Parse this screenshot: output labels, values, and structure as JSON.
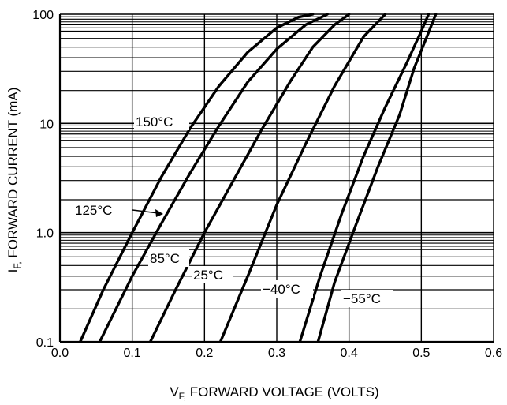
{
  "chart_data": {
    "type": "line",
    "title": "",
    "xlabel": "V_F, FORWARD VOLTAGE (VOLTS)",
    "xlabel_main": "V",
    "xlabel_sub": "F,",
    "xlabel_rest": " FORWARD VOLTAGE (VOLTS)",
    "ylabel": "I_F, FORWARD CURRENT (mA)",
    "ylabel_main": "I",
    "ylabel_sub": "F,",
    "ylabel_rest": " FORWARD CURRENT (mA)",
    "xlim": [
      0.0,
      0.6
    ],
    "ylim": [
      0.1,
      100
    ],
    "yscale": "log",
    "grid": true,
    "x_ticks": [
      "0.0",
      "0.1",
      "0.2",
      "0.3",
      "0.4",
      "0.5",
      "0.6"
    ],
    "y_ticks": [
      {
        "value": 0.1,
        "label": "0.1"
      },
      {
        "value": 1.0,
        "label": "1.0"
      },
      {
        "value": 10,
        "label": "10"
      },
      {
        "value": 100,
        "label": "100"
      }
    ],
    "series": [
      {
        "name": "150°C",
        "x": [
          0.028,
          0.06,
          0.1,
          0.14,
          0.18,
          0.22,
          0.26,
          0.3,
          0.33,
          0.35
        ],
        "y": [
          0.1,
          0.3,
          1.0,
          3.2,
          9.0,
          22,
          45,
          75,
          94,
          100
        ]
      },
      {
        "name": "125°C",
        "x": [
          0.055,
          0.1,
          0.14,
          0.18,
          0.22,
          0.26,
          0.3,
          0.34,
          0.37
        ],
        "y": [
          0.1,
          0.4,
          1.2,
          3.5,
          9.5,
          24,
          48,
          80,
          100
        ]
      },
      {
        "name": "85°C",
        "x": [
          0.125,
          0.16,
          0.2,
          0.24,
          0.28,
          0.32,
          0.35,
          0.38,
          0.4
        ],
        "y": [
          0.1,
          0.3,
          1.0,
          3.0,
          9.0,
          25,
          50,
          80,
          100
        ]
      },
      {
        "name": "25°C",
        "x": [
          0.222,
          0.26,
          0.3,
          0.34,
          0.38,
          0.42,
          0.45
        ],
        "y": [
          0.1,
          0.4,
          1.8,
          6.5,
          22,
          62,
          100
        ]
      },
      {
        "name": "−40°C",
        "x": [
          0.332,
          0.36,
          0.39,
          0.42,
          0.45,
          0.48,
          0.5,
          0.51
        ],
        "y": [
          0.1,
          0.4,
          1.5,
          5.0,
          14,
          36,
          70,
          100
        ]
      },
      {
        "name": "−55°C",
        "x": [
          0.357,
          0.38,
          0.41,
          0.44,
          0.47,
          0.49,
          0.51,
          0.52
        ],
        "y": [
          0.1,
          0.35,
          1.2,
          4.0,
          12,
          32,
          68,
          100
        ]
      }
    ],
    "annotations": [
      {
        "text": "150°C",
        "series": 0
      },
      {
        "text": "125°C",
        "series": 1
      },
      {
        "text": "85°C",
        "series": 2
      },
      {
        "text": "25°C",
        "series": 3
      },
      {
        "text": "−40°C",
        "series": 4
      },
      {
        "text": "−55°C",
        "series": 5
      }
    ]
  }
}
